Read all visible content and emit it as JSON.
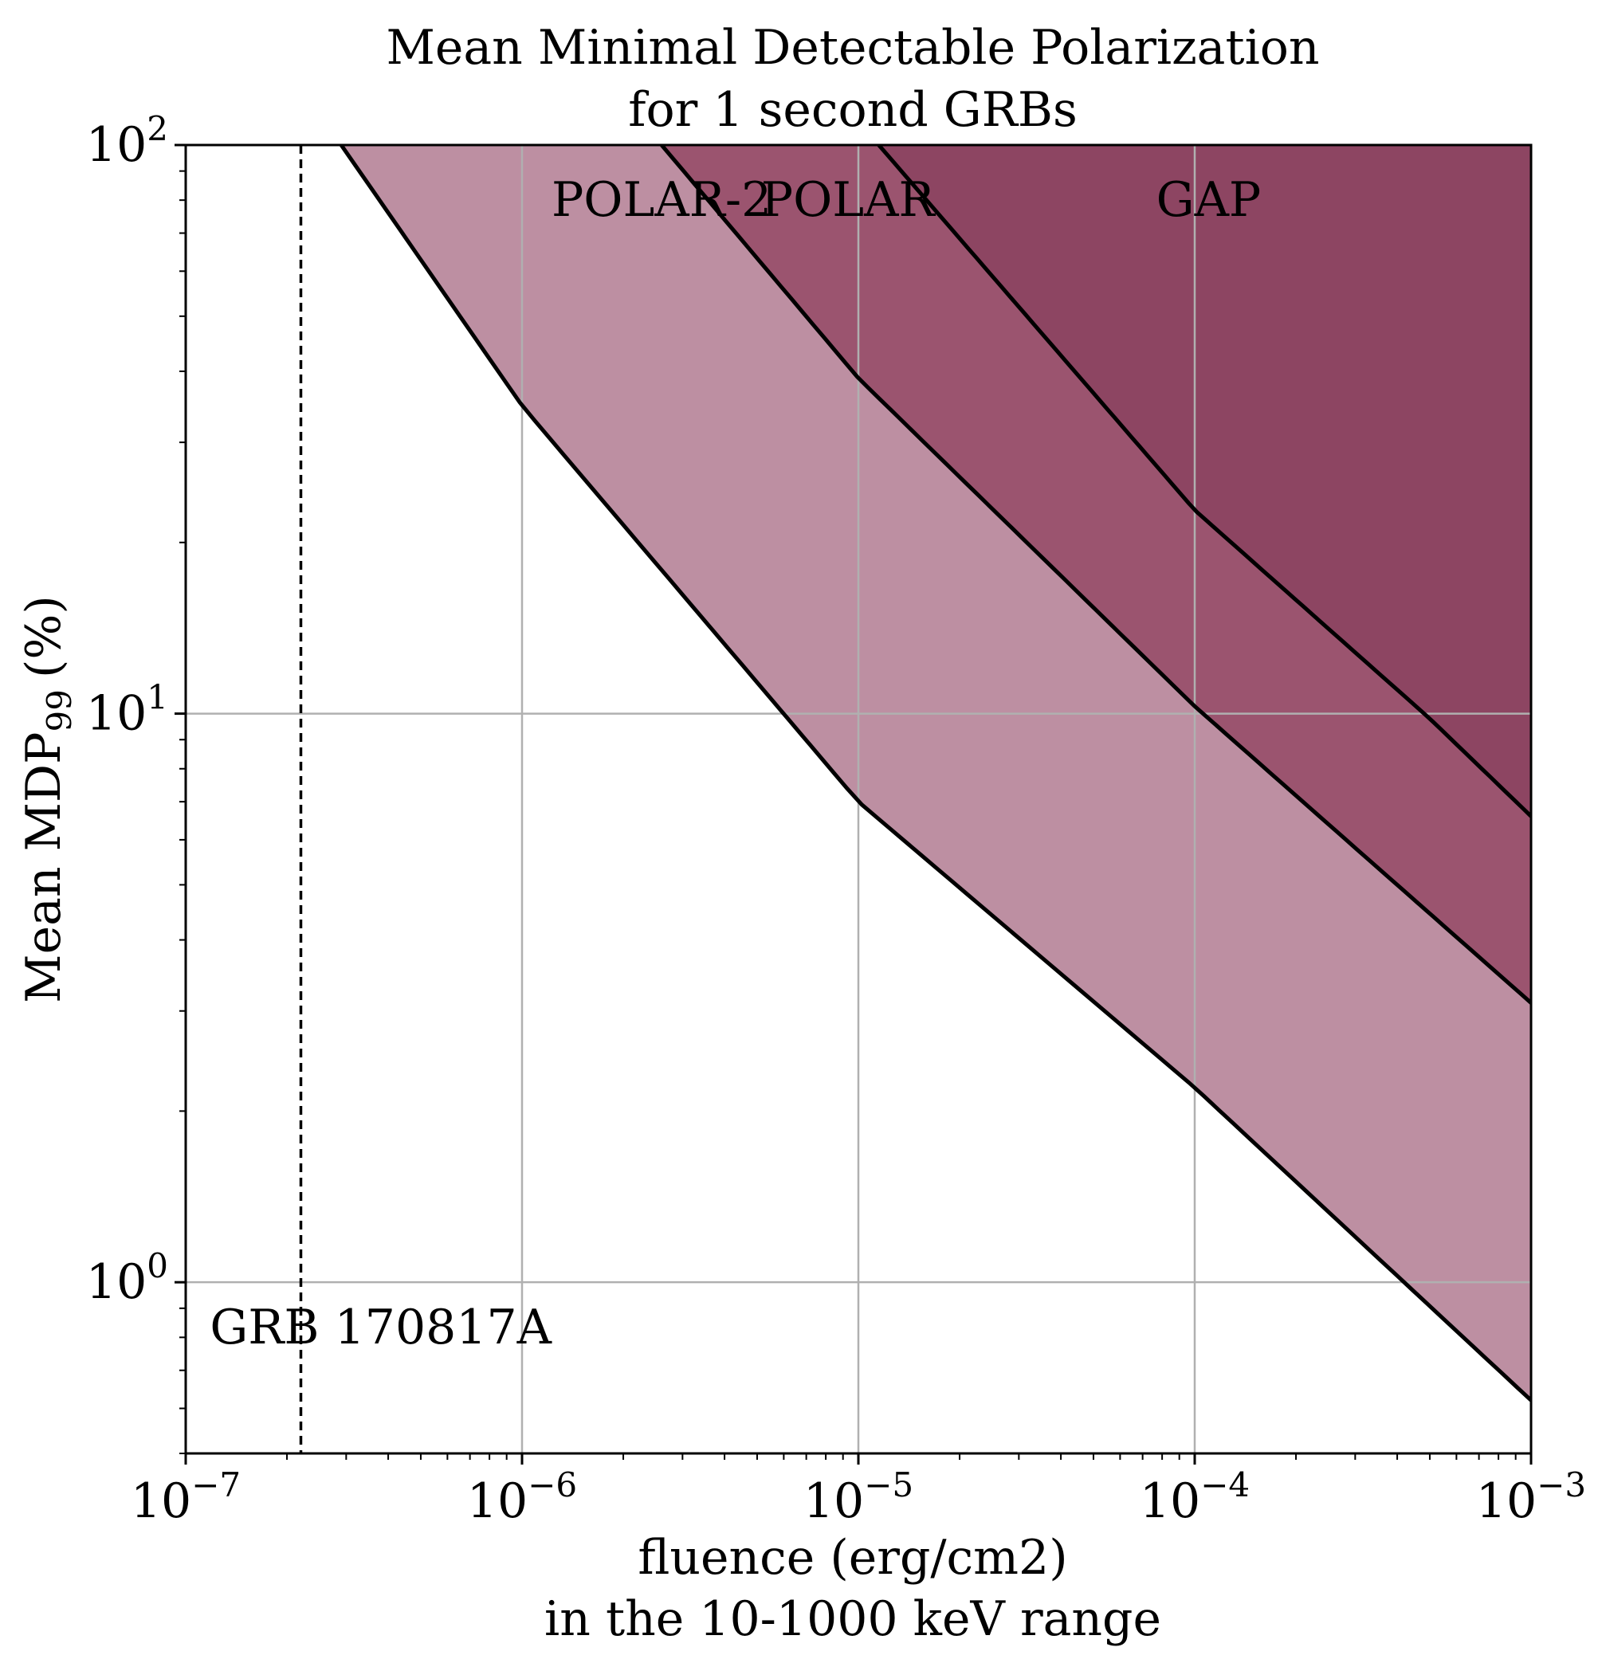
{
  "chart_data": {
    "type": "area",
    "title_line1": "Mean Minimal Detectable Polarization",
    "title_line2": "for 1 second GRBs",
    "xlabel_line1": "fluence (erg/cm2)",
    "xlabel_line2": "in the 10-1000 keV range",
    "ylabel_main": "Mean MDP",
    "ylabel_sub": "99",
    "ylabel_unit": "(%)",
    "xscale": "log",
    "yscale": "log",
    "xlim": [
      1e-07,
      0.001
    ],
    "ylim": [
      0.5,
      100
    ],
    "grid": true,
    "x_ticks": [
      {
        "value": 1e-07,
        "base": "10",
        "exp": "−7"
      },
      {
        "value": 1e-06,
        "base": "10",
        "exp": "−6"
      },
      {
        "value": 1e-05,
        "base": "10",
        "exp": "−5"
      },
      {
        "value": 0.0001,
        "base": "10",
        "exp": "−4"
      },
      {
        "value": 0.001,
        "base": "10",
        "exp": "−3"
      }
    ],
    "y_ticks": [
      {
        "value": 1,
        "base": "10",
        "exp": "0"
      },
      {
        "value": 10,
        "base": "10",
        "exp": "1"
      },
      {
        "value": 100,
        "base": "10",
        "exp": "2"
      }
    ],
    "series": [
      {
        "name": "POLAR-2",
        "color": "#bd8fa2",
        "label_x": 2.6e-06,
        "label_y": 75,
        "x": [
          2.9e-07,
          1e-06,
          1e-05,
          0.0001,
          0.001
        ],
        "y": [
          100,
          34.8,
          7.0,
          2.2,
          0.62
        ]
      },
      {
        "name": "POLAR",
        "color": "#9b546f",
        "label_x": 9.3e-06,
        "label_y": 75,
        "x": [
          2.6e-06,
          1e-05,
          0.0001,
          0.001
        ],
        "y": [
          100,
          38.9,
          10.3,
          3.1
        ]
      },
      {
        "name": "GAP",
        "color": "#8d4562",
        "label_x": 0.00011,
        "label_y": 75,
        "x": [
          1.15e-05,
          0.0001,
          0.0005,
          0.001
        ],
        "y": [
          100,
          22.8,
          9.8,
          6.6
        ]
      }
    ],
    "annotation": {
      "label": "GRB 170817A",
      "x": 2.2e-07,
      "label_x": 3.8e-07,
      "label_y": 0.78
    }
  }
}
